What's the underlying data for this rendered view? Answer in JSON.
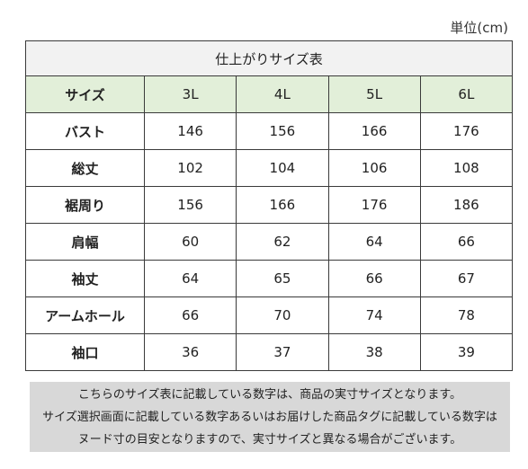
{
  "unit_label": "単位(cm)",
  "table": {
    "title": "仕上がりサイズ表",
    "header": [
      "サイズ",
      "3L",
      "4L",
      "5L",
      "6L"
    ],
    "rows": [
      {
        "label": "バスト",
        "values": [
          "146",
          "156",
          "166",
          "176"
        ]
      },
      {
        "label": "総丈",
        "values": [
          "102",
          "104",
          "106",
          "108"
        ]
      },
      {
        "label": "裾周り",
        "values": [
          "156",
          "166",
          "176",
          "186"
        ]
      },
      {
        "label": "肩幅",
        "values": [
          "60",
          "62",
          "64",
          "66"
        ]
      },
      {
        "label": "袖丈",
        "values": [
          "64",
          "65",
          "66",
          "67"
        ]
      },
      {
        "label": "アームホール",
        "values": [
          "66",
          "70",
          "74",
          "78"
        ]
      },
      {
        "label": "袖口",
        "values": [
          "36",
          "37",
          "38",
          "39"
        ]
      }
    ]
  },
  "note": {
    "line1": "こちらのサイズ表に記載している数字は、商品の実寸サイズとなります。",
    "line2": "サイズ選択画面に記載している数字あるいはお届けした商品タグに記載している数字は",
    "line3": "ヌード寸の目安となりますので、実寸サイズと異なる場合がございます。"
  },
  "colors": {
    "header_fill": "#e2efd9",
    "title_fill": "#f2f2f2",
    "note_fill": "#d8d8d8",
    "border": "#3a3a3a"
  }
}
